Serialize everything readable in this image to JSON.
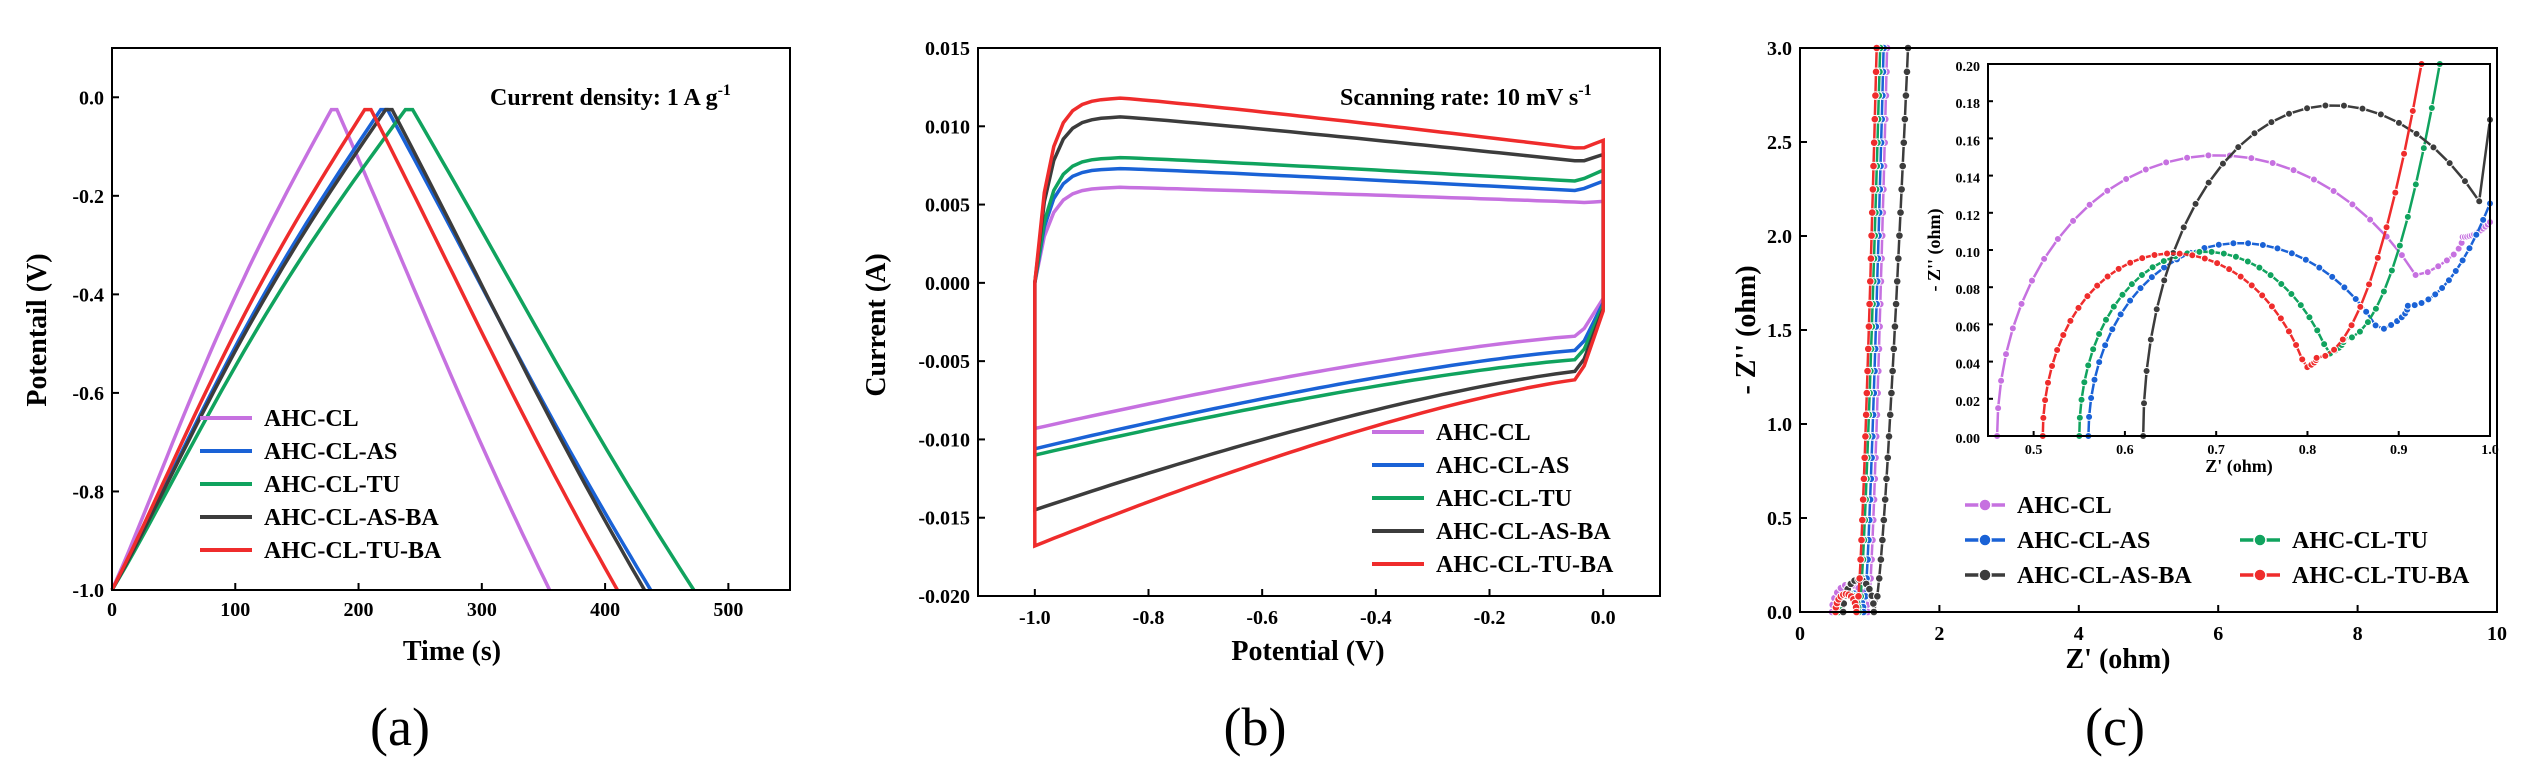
{
  "colors": {
    "AHC-CL": "#c671e0",
    "AHC-CL-AS": "#1a62d6",
    "AHC-CL-TU": "#10a35e",
    "AHC-CL-AS-BA": "#3c3c3c",
    "AHC-CL-TU-BA": "#ef2c2c"
  },
  "legend": [
    "AHC-CL",
    "AHC-CL-AS",
    "AHC-CL-TU",
    "AHC-CL-AS-BA",
    "AHC-CL-TU-BA"
  ],
  "panel_labels": [
    "(a)",
    "(b)",
    "(c)"
  ],
  "chart_data": [
    {
      "id": "a",
      "type": "line",
      "xlabel": "Time (s)",
      "ylabel": "Potentail (V)",
      "annotation_main": "Current density: 1 A g",
      "annotation_sup": "-1",
      "xlim": [
        0,
        550
      ],
      "ylim": [
        -1.0,
        0.1
      ],
      "xticks": [
        0,
        100,
        200,
        300,
        400,
        500
      ],
      "yticks": [
        -1.0,
        -0.8,
        -0.6,
        -0.4,
        -0.2,
        0.0
      ],
      "xtick_labels": [
        "0",
        "100",
        "200",
        "300",
        "400",
        "500"
      ],
      "ytick_labels": [
        "-1.0",
        "-0.8",
        "-0.6",
        "-0.4",
        "-0.2",
        "0.0"
      ],
      "series": [
        {
          "name": "AHC-CL",
          "peak": 178,
          "end": 355
        },
        {
          "name": "AHC-CL-AS",
          "peak": 218,
          "end": 437
        },
        {
          "name": "AHC-CL-TU",
          "peak": 238,
          "end": 472
        },
        {
          "name": "AHC-CL-AS-BA",
          "peak": 222,
          "end": 432
        },
        {
          "name": "AHC-CL-TU-BA",
          "peak": 205,
          "end": 410
        }
      ]
    },
    {
      "id": "b",
      "type": "line",
      "xlabel": "Potential (V)",
      "ylabel": "Current (A)",
      "annotation_main": "Scanning rate: 10 mV s",
      "annotation_sup": "-1",
      "xlim": [
        -1.1,
        0.1
      ],
      "ylim": [
        -0.02,
        0.015
      ],
      "xticks": [
        -1.0,
        -0.8,
        -0.6,
        -0.4,
        -0.2,
        0.0
      ],
      "yticks": [
        -0.02,
        -0.015,
        -0.01,
        -0.005,
        0.0,
        0.005,
        0.01,
        0.015
      ],
      "xtick_labels": [
        "-1.0",
        "-0.8",
        "-0.6",
        "-0.4",
        "-0.2",
        "0.0"
      ],
      "ytick_labels": [
        "-0.020",
        "-0.015",
        "-0.010",
        "-0.005",
        "0.000",
        "0.005",
        "0.010",
        "0.015"
      ],
      "series": [
        {
          "name": "AHC-CL",
          "top_peak": 0.0061,
          "top_end": 0.0051,
          "bot_start": -0.0093,
          "bot_end": -0.0033,
          "top_right": 0.0052
        },
        {
          "name": "AHC-CL-AS",
          "top_peak": 0.0073,
          "top_end": 0.0058,
          "bot_start": -0.0106,
          "bot_end": -0.0042,
          "top_right": 0.0065
        },
        {
          "name": "AHC-CL-TU",
          "top_peak": 0.008,
          "top_end": 0.0064,
          "bot_start": -0.011,
          "bot_end": -0.0048,
          "top_right": 0.0072
        },
        {
          "name": "AHC-CL-AS-BA",
          "top_peak": 0.0106,
          "top_end": 0.0076,
          "bot_start": -0.0145,
          "bot_end": -0.0055,
          "top_right": 0.0082
        },
        {
          "name": "AHC-CL-TU-BA",
          "top_peak": 0.0118,
          "top_end": 0.0084,
          "bot_start": -0.0168,
          "bot_end": -0.006,
          "top_right": 0.0091
        }
      ]
    },
    {
      "id": "c",
      "type": "scatter",
      "xlabel": "Z' (ohm)",
      "ylabel": "- Z'' (ohm)",
      "xlim": [
        0,
        10
      ],
      "ylim": [
        0,
        3.0
      ],
      "xticks": [
        0,
        2,
        4,
        6,
        8,
        10
      ],
      "yticks": [
        0.0,
        0.5,
        1.0,
        1.5,
        2.0,
        2.5,
        3.0
      ],
      "xtick_labels": [
        "0",
        "2",
        "4",
        "6",
        "8",
        "10"
      ],
      "ytick_labels": [
        "0.0",
        "0.5",
        "1.0",
        "1.5",
        "2.0",
        "2.5",
        "3.0"
      ],
      "inset": {
        "xlabel": "Z' (ohm)",
        "ylabel": "- Z'' (ohm)",
        "xlim": [
          0.45,
          1.0
        ],
        "ylim": [
          0,
          0.2
        ],
        "xticks": [
          0.5,
          0.6,
          0.7,
          0.8,
          0.9,
          1.0
        ],
        "yticks": [
          0.0,
          0.02,
          0.04,
          0.06,
          0.08,
          0.1,
          0.12,
          0.14,
          0.16,
          0.18,
          0.2
        ],
        "xtick_labels": [
          "0.5",
          "0.6",
          "0.7",
          "0.8",
          "0.9",
          "1.0"
        ],
        "ytick_labels": [
          "0.00",
          "0.02",
          "0.04",
          "0.06",
          "0.08",
          "0.10",
          "0.12",
          "0.14",
          "0.16",
          "0.18",
          "0.20"
        ]
      },
      "series": [
        {
          "name": "AHC-CL",
          "r0": 0.46,
          "arc_end": 0.97,
          "peak": 0.163,
          "min_y": 0.107,
          "tail_x": 1.0,
          "tail_y": 0.115,
          "main_x": 1.25
        },
        {
          "name": "AHC-CL-AS",
          "r0": 0.56,
          "arc_end": 0.91,
          "peak": 0.112,
          "min_y": 0.07,
          "tail_x": 1.0,
          "tail_y": 0.125,
          "main_x": 1.2
        },
        {
          "name": "AHC-CL-TU",
          "r0": 0.55,
          "arc_end": 0.84,
          "peak": 0.107,
          "min_y": 0.052,
          "tail_x": 0.945,
          "tail_y": 0.2,
          "main_x": 1.15
        },
        {
          "name": "AHC-CL-AS-BA",
          "r0": 0.62,
          "arc_end": 1.06,
          "peak": 0.192,
          "min_y": 0.17,
          "tail_x": 1.0,
          "tail_y": 0.17,
          "main_x": 1.55
        },
        {
          "name": "AHC-CL-TU-BA",
          "r0": 0.51,
          "arc_end": 0.81,
          "peak": 0.106,
          "min_y": 0.042,
          "tail_x": 0.925,
          "tail_y": 0.2,
          "main_x": 1.1
        }
      ]
    }
  ]
}
